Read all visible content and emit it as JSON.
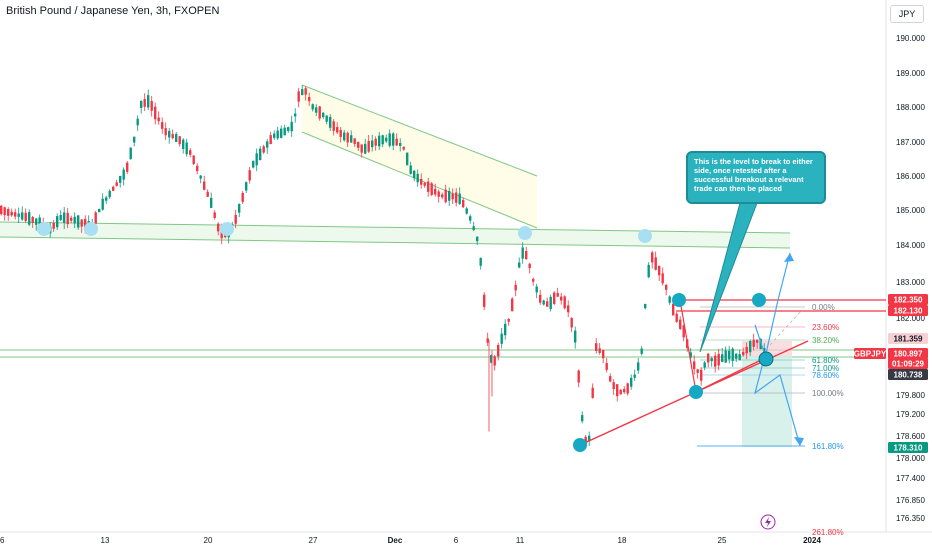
{
  "header": {
    "title": "British Pound / Japanese Yen, 3h, FXOPEN",
    "currency_button": "JPY"
  },
  "annotation": {
    "text": "This is the level to break to either side, once retested after a successful breakout a relevant trade can then be placed"
  },
  "price_scale": {
    "ticks": [
      "190.000",
      "189.000",
      "188.000",
      "187.000",
      "186.000",
      "185.000",
      "184.000",
      "183.000",
      "182.000",
      "181.000",
      "180.600",
      "179.800",
      "179.200",
      "178.600",
      "178.000",
      "177.400",
      "176.850",
      "176.350"
    ],
    "labels": [
      {
        "text": "182.350",
        "color": "#f23645"
      },
      {
        "text": "182.130",
        "color": "#f23645"
      },
      {
        "text": "181.359",
        "color": "#ffffff"
      },
      {
        "text": "GBPJPY",
        "color": "#f23645"
      },
      {
        "text": "180.897",
        "color": "#f23645"
      },
      {
        "text": "01:09:29",
        "color": "#f23645"
      },
      {
        "text": "180.738",
        "color": "#363a45"
      },
      {
        "text": "178.310",
        "color": "#089981"
      }
    ]
  },
  "time_axis": {
    "labels": [
      "6",
      "13",
      "20",
      "27",
      "Dec",
      "6",
      "11",
      "18",
      "25",
      "2024"
    ]
  },
  "fib_levels": [
    {
      "text": "0.00%",
      "color": "#787b86"
    },
    {
      "text": "23.60%",
      "color": "#f23645"
    },
    {
      "text": "38.20%",
      "color": "#4caf50"
    },
    {
      "text": "61.80%",
      "color": "#089981"
    },
    {
      "text": "71.00%",
      "color": "#089981"
    },
    {
      "text": "78.60%",
      "color": "#2196f3"
    },
    {
      "text": "100.00%",
      "color": "#787b86"
    },
    {
      "text": "161.80%",
      "color": "#2196f3"
    },
    {
      "text": "261.80%",
      "color": "#f23645"
    }
  ],
  "chart_data": {
    "type": "candlestick",
    "symbol": "GBPJPY",
    "timeframe": "3h",
    "ylim": [
      176.1,
      190.6
    ],
    "up_color": "#089981",
    "down_color": "#f23645",
    "last_price": 180.897,
    "path_points": [
      [
        0,
        185.2
      ],
      [
        10,
        185.1
      ],
      [
        25,
        185.0
      ],
      [
        40,
        184.8
      ],
      [
        48,
        184.6
      ],
      [
        60,
        185.0
      ],
      [
        75,
        184.9
      ],
      [
        90,
        184.7
      ],
      [
        100,
        185.3
      ],
      [
        112,
        185.8
      ],
      [
        125,
        186.3
      ],
      [
        133,
        187.2
      ],
      [
        140,
        188.2
      ],
      [
        148,
        188.3
      ],
      [
        155,
        187.9
      ],
      [
        165,
        187.4
      ],
      [
        178,
        187.2
      ],
      [
        190,
        186.8
      ],
      [
        200,
        186.1
      ],
      [
        210,
        185.4
      ],
      [
        218,
        184.6
      ],
      [
        226,
        184.5
      ],
      [
        233,
        184.8
      ],
      [
        242,
        185.6
      ],
      [
        252,
        186.5
      ],
      [
        262,
        186.9
      ],
      [
        272,
        187.3
      ],
      [
        282,
        187.4
      ],
      [
        292,
        187.6
      ],
      [
        298,
        188.5
      ],
      [
        304,
        188.6
      ],
      [
        312,
        188.1
      ],
      [
        322,
        187.9
      ],
      [
        332,
        187.6
      ],
      [
        342,
        187.3
      ],
      [
        352,
        187.2
      ],
      [
        362,
        186.9
      ],
      [
        372,
        187.1
      ],
      [
        382,
        187.2
      ],
      [
        392,
        187.2
      ],
      [
        402,
        187.0
      ],
      [
        410,
        186.3
      ],
      [
        420,
        186.0
      ],
      [
        430,
        185.8
      ],
      [
        440,
        185.6
      ],
      [
        450,
        185.6
      ],
      [
        460,
        185.5
      ],
      [
        470,
        184.9
      ],
      [
        478,
        184.2
      ],
      [
        484,
        182.3
      ],
      [
        488,
        181.0
      ],
      [
        494,
        180.9
      ],
      [
        500,
        181.5
      ],
      [
        508,
        182.1
      ],
      [
        514,
        182.9
      ],
      [
        520,
        184.0
      ],
      [
        526,
        183.9
      ],
      [
        532,
        183.2
      ],
      [
        540,
        182.6
      ],
      [
        548,
        182.5
      ],
      [
        556,
        182.8
      ],
      [
        566,
        182.5
      ],
      [
        574,
        181.6
      ],
      [
        578,
        180.3
      ],
      [
        583,
        178.6
      ],
      [
        588,
        178.7
      ],
      [
        595,
        181.3
      ],
      [
        602,
        181.1
      ],
      [
        610,
        180.3
      ],
      [
        618,
        180.0
      ],
      [
        626,
        180.1
      ],
      [
        634,
        180.5
      ],
      [
        640,
        181.0
      ],
      [
        646,
        183.2
      ],
      [
        650,
        183.9
      ],
      [
        656,
        183.6
      ],
      [
        664,
        183.1
      ],
      [
        670,
        182.5
      ],
      [
        676,
        182.1
      ],
      [
        682,
        181.8
      ],
      [
        688,
        181.2
      ],
      [
        694,
        180.7
      ],
      [
        700,
        180.5
      ],
      [
        706,
        181.0
      ],
      [
        714,
        180.9
      ],
      [
        722,
        181.0
      ],
      [
        730,
        181.1
      ],
      [
        738,
        181.0
      ],
      [
        745,
        181.2
      ],
      [
        752,
        181.4
      ],
      [
        758,
        181.5
      ],
      [
        762,
        181.2
      ],
      [
        766,
        180.9
      ]
    ],
    "levels": [
      {
        "name": "support_zone_top",
        "price": 184.4
      },
      {
        "name": "support_zone_bottom",
        "price": 184.15
      },
      {
        "name": "red_top",
        "price": 182.35
      },
      {
        "name": "red_second",
        "price": 182.13
      },
      {
        "name": "green_lower_1",
        "price": 181.05
      },
      {
        "name": "green_lower_2",
        "price": 180.87
      }
    ]
  }
}
